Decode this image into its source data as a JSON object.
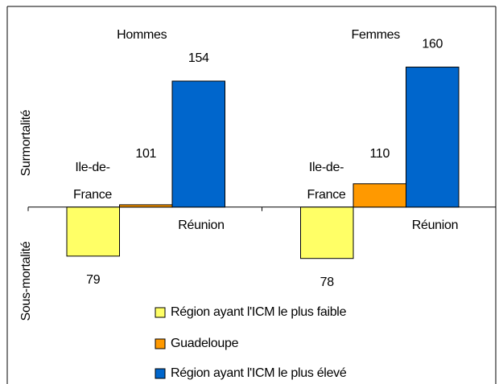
{
  "chart_data": {
    "type": "bar",
    "baseline": 100,
    "ylabel_top": "Surmortalité",
    "ylabel_bottom": "Sous-mortalité",
    "categories": [
      "Hommes",
      "Femmes"
    ],
    "series": [
      {
        "name": "Région ayant l'ICM le plus faible",
        "color": "#ffff66",
        "values": [
          79,
          78
        ]
      },
      {
        "name": "Guadeloupe",
        "color": "#ff9900",
        "values": [
          101,
          110
        ]
      },
      {
        "name": "Région ayant l'ICM le plus élevé",
        "color": "#0066cc",
        "values": [
          154,
          160
        ]
      }
    ],
    "annotations": [
      {
        "lines": [
          "Ile-de-",
          "France"
        ]
      },
      {
        "lines": [
          "Réunion"
        ]
      },
      {
        "lines": [
          "Ile-de-",
          "France"
        ]
      },
      {
        "lines": [
          "Réunion"
        ]
      }
    ],
    "ylim": [
      60,
      186
    ],
    "legend": "bottom"
  }
}
